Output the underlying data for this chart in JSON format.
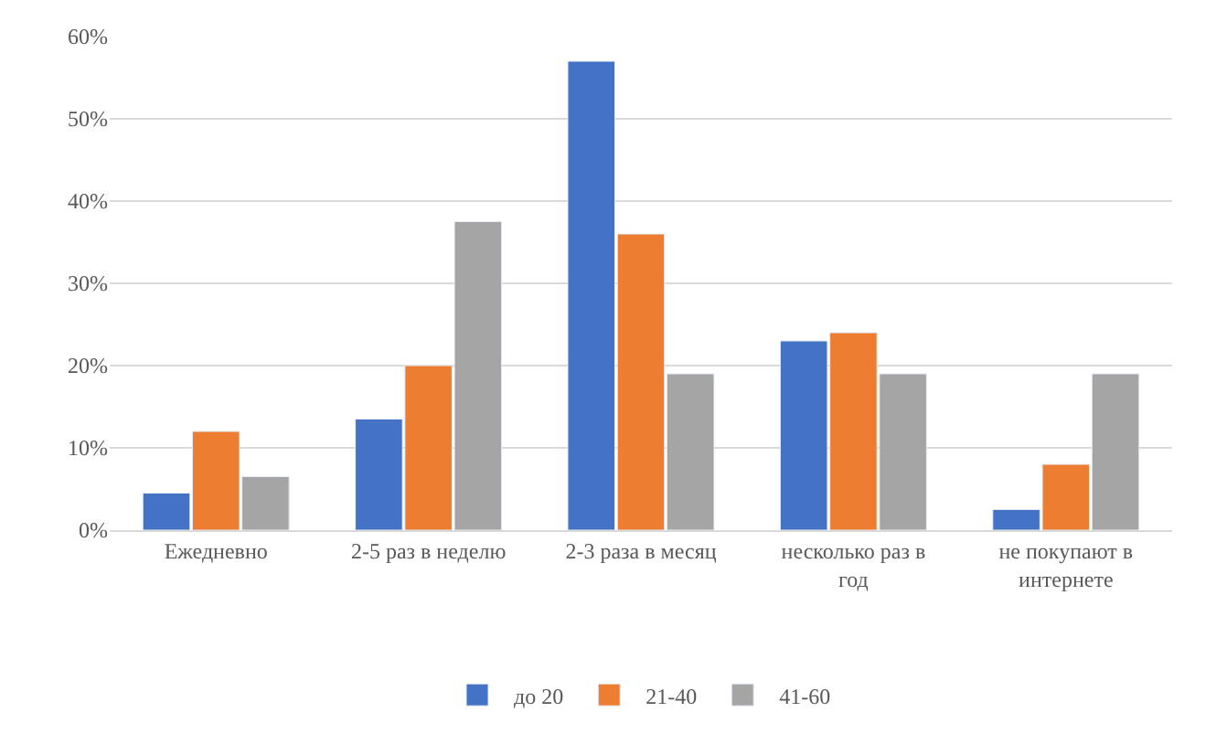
{
  "chart_data": {
    "type": "bar",
    "categories": [
      "Ежедневно",
      "2-5 раз в неделю",
      "2-3 раза в месяц",
      "несколько раз в год",
      "не покупают в интернете"
    ],
    "series": [
      {
        "name": "до 20",
        "color": "#4472c4",
        "values": [
          4.5,
          13.5,
          57,
          23,
          2.5
        ]
      },
      {
        "name": "21-40",
        "color": "#ed7d31",
        "values": [
          12,
          20,
          36,
          24,
          8
        ]
      },
      {
        "name": "41-60",
        "color": "#a5a5a5",
        "values": [
          6.5,
          37.5,
          19,
          19,
          19
        ]
      }
    ],
    "ylim": [
      0,
      60
    ],
    "yticks": [
      {
        "value": 0,
        "label": "0%"
      },
      {
        "value": 10,
        "label": "10%"
      },
      {
        "value": 20,
        "label": "20%"
      },
      {
        "value": 30,
        "label": "30%"
      },
      {
        "value": 40,
        "label": "40%"
      },
      {
        "value": 50,
        "label": "50%"
      },
      {
        "value": 60,
        "label": "60%"
      }
    ],
    "grid": "y",
    "legend": "bottom"
  }
}
